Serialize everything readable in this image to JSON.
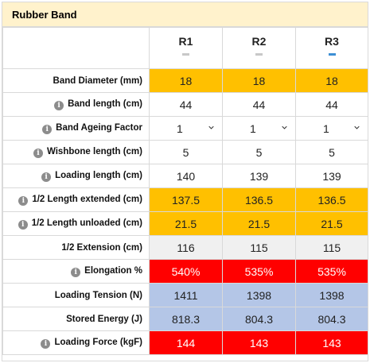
{
  "panel": {
    "title": "Rubber Band"
  },
  "columns": [
    {
      "name": "R1",
      "active": false
    },
    {
      "name": "R2",
      "active": false
    },
    {
      "name": "R3",
      "active": true
    }
  ],
  "rows": [
    {
      "label": "Band Diameter (mm)",
      "info": false,
      "style": "yellow",
      "values": [
        "18",
        "18",
        "18"
      ]
    },
    {
      "label": "Band length (cm)",
      "info": true,
      "style": "plain",
      "values": [
        "44",
        "44",
        "44"
      ]
    },
    {
      "label": "Band Ageing Factor",
      "info": true,
      "style": "select",
      "values": [
        "1",
        "1",
        "1"
      ]
    },
    {
      "label": "Wishbone length (cm)",
      "info": true,
      "style": "plain",
      "values": [
        "5",
        "5",
        "5"
      ]
    },
    {
      "label": "Loading length (cm)",
      "info": true,
      "style": "plain",
      "values": [
        "140",
        "139",
        "139"
      ]
    },
    {
      "label": "1/2 Length extended (cm)",
      "info": true,
      "style": "yellow",
      "values": [
        "137.5",
        "136.5",
        "136.5"
      ]
    },
    {
      "label": "1/2 Length unloaded (cm)",
      "info": true,
      "style": "yellow",
      "values": [
        "21.5",
        "21.5",
        "21.5"
      ]
    },
    {
      "label": "1/2 Extension (cm)",
      "info": false,
      "style": "gray",
      "values": [
        "116",
        "115",
        "115"
      ]
    },
    {
      "label": "Elongation %",
      "info": true,
      "style": "red",
      "values": [
        "540%",
        "535%",
        "535%"
      ]
    },
    {
      "label": "Loading Tension (N)",
      "info": false,
      "style": "blue",
      "values": [
        "1411",
        "1398",
        "1398"
      ]
    },
    {
      "label": "Stored Energy (J)",
      "info": false,
      "style": "blue",
      "values": [
        "818.3",
        "804.3",
        "804.3"
      ]
    },
    {
      "label": "Loading Force (kgF)",
      "info": true,
      "style": "red",
      "values": [
        "144",
        "143",
        "143"
      ]
    }
  ],
  "icons": {
    "info": "info-icon",
    "dropdown": "chevron-down-icon"
  },
  "info_glyph": "i",
  "colors": {
    "yellow": "#ffc000",
    "red": "#ff0000",
    "blue": "#b4c6e7",
    "gray": "#f0f0f0",
    "header": "#fff2cc",
    "active_tab": "#3d8fd4"
  }
}
